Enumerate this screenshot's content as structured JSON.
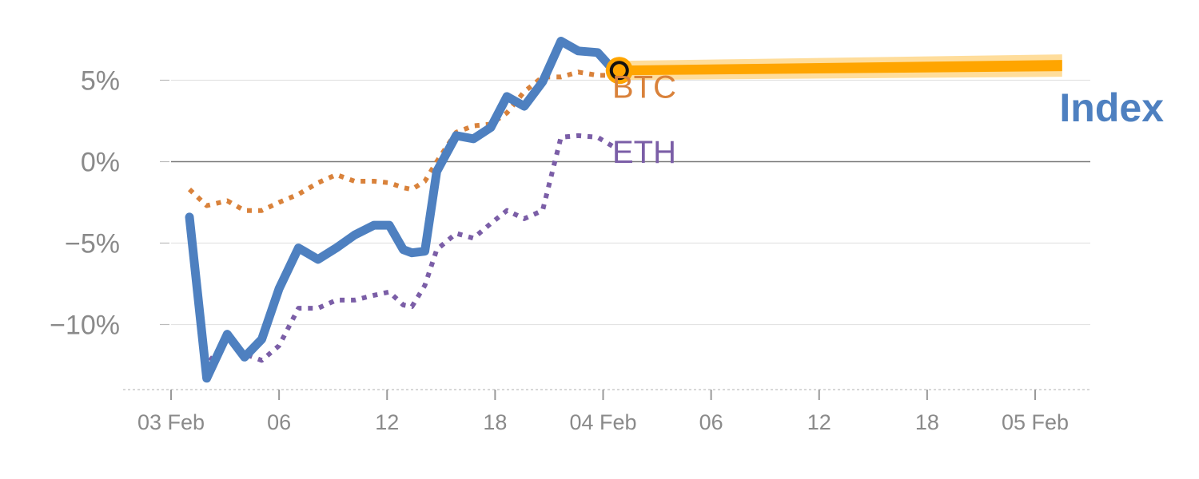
{
  "chart_data": {
    "type": "line",
    "title": "",
    "xlabel": "",
    "ylabel": "",
    "ylim": [
      -14,
      8
    ],
    "x_axis": {
      "min": 0,
      "max": 85,
      "ticks": [
        {
          "x": 0,
          "label": "03 Feb"
        },
        {
          "x": 10,
          "label": "06"
        },
        {
          "x": 20,
          "label": "12"
        },
        {
          "x": 30,
          "label": "18"
        },
        {
          "x": 40,
          "label": "04 Feb"
        },
        {
          "x": 50,
          "label": "06"
        },
        {
          "x": 60,
          "label": "12"
        },
        {
          "x": 70,
          "label": "18"
        },
        {
          "x": 80,
          "label": "05 Feb"
        }
      ]
    },
    "y_axis": {
      "ticks": [
        {
          "y": 5,
          "label": "5%"
        },
        {
          "y": 0,
          "label": "0%"
        },
        {
          "y": -5,
          "label": "−5%"
        },
        {
          "y": -10,
          "label": "−10%"
        }
      ]
    },
    "grid": true,
    "series": [
      {
        "name": "BTC",
        "color": "#D9823B",
        "style": "dotted",
        "x": [
          1.7,
          3.3,
          5.2,
          6.8,
          8.4,
          10,
          11.8,
          13.6,
          15.3,
          17,
          18.8,
          20.2,
          21.5,
          22.3,
          23.5,
          24.6,
          26.4,
          28,
          29.6,
          31.1,
          32.7,
          34.4,
          36.1,
          37.7,
          39.5,
          41
        ],
        "y": [
          -1.7,
          -2.7,
          -2.4,
          -3.0,
          -3.0,
          -2.5,
          -2.0,
          -1.3,
          -0.8,
          -1.2,
          -1.2,
          -1.3,
          -1.6,
          -1.7,
          -1.2,
          0,
          1.8,
          2.2,
          2.3,
          3.0,
          4.3,
          5.2,
          5.2,
          5.5,
          5.3,
          5.3
        ]
      },
      {
        "name": "ETH",
        "color": "#7B5EA7",
        "style": "dotted",
        "x": [
          1.7,
          3.3,
          5.2,
          6.8,
          8.4,
          10,
          11.8,
          13.6,
          15.3,
          17,
          18.8,
          20.2,
          21.5,
          22.3,
          23.5,
          24.6,
          26.4,
          28,
          29.6,
          31.1,
          32.7,
          34.4,
          36.1,
          37.7,
          39.5,
          41
        ],
        "y": [
          -3.3,
          -12.5,
          -10.8,
          -11.8,
          -12.2,
          -11.3,
          -9.0,
          -9.0,
          -8.5,
          -8.5,
          -8.2,
          -8.0,
          -8.8,
          -8.9,
          -7.6,
          -5.4,
          -4.4,
          -4.7,
          -3.8,
          -3.0,
          -3.5,
          -3.0,
          1.5,
          1.6,
          1.5,
          0.9
        ]
      },
      {
        "name": "Index",
        "color": "#4E80C0",
        "style": "solid",
        "x": [
          1.7,
          3.3,
          5.2,
          6.8,
          8.4,
          10,
          11.8,
          13.6,
          15.3,
          17,
          18.8,
          20.2,
          21.5,
          22.3,
          23.5,
          24.6,
          26.4,
          28,
          29.6,
          31.1,
          32.7,
          34.4,
          36.1,
          37.7,
          39.5,
          41
        ],
        "y": [
          -3.4,
          -13.3,
          -10.6,
          -12.0,
          -10.9,
          -7.8,
          -5.3,
          -6.0,
          -5.3,
          -4.5,
          -3.9,
          -3.9,
          -5.4,
          -5.6,
          -5.5,
          -0.6,
          1.6,
          1.4,
          2.1,
          4.0,
          3.4,
          4.9,
          7.4,
          6.8,
          6.7,
          5.6
        ]
      }
    ],
    "highlight": {
      "color": "#FFA500",
      "band_color": "#FFD27A",
      "point": {
        "x": 41.5,
        "y": 5.6
      },
      "band_end": {
        "x": 82.5,
        "y": 5.9
      }
    },
    "labels": {
      "btc": "BTC",
      "eth": "ETH",
      "index": "Index"
    }
  }
}
